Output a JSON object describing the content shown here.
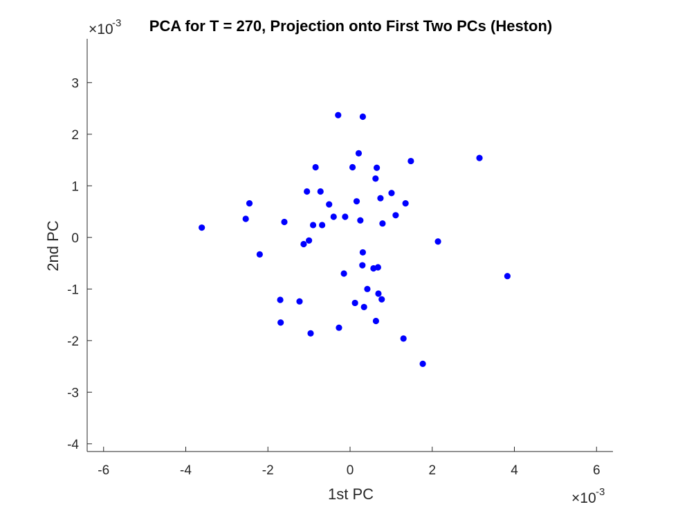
{
  "chart_data": {
    "type": "scatter",
    "title": "PCA for T = 270, Projection onto First Two PCs (Heston)",
    "xlabel": "1st PC",
    "ylabel": "2nd PC",
    "x_multiplier_label": "×10",
    "x_exponent": "-3",
    "y_multiplier_label": "×10",
    "y_exponent": "-3",
    "xlim": [
      -6.4,
      6.4
    ],
    "ylim": [
      -4.15,
      3.85
    ],
    "xticks": [
      -6,
      -4,
      -2,
      0,
      2,
      4,
      6
    ],
    "xtick_labels": [
      "-6",
      "-4",
      "-2",
      "0",
      "2",
      "4",
      "6"
    ],
    "yticks": [
      -4,
      -3,
      -2,
      -1,
      0,
      1,
      2,
      3
    ],
    "ytick_labels": [
      "-4",
      "-3",
      "-2",
      "-1",
      "0",
      "1",
      "2",
      "3"
    ],
    "grid": false,
    "marker_color": "#0000ff",
    "series": [
      {
        "x": [
          -0.29,
          0.31,
          0.21,
          1.48,
          3.15,
          -0.84,
          0.06,
          0.65,
          0.62,
          -1.05,
          -0.72,
          1.01,
          0.74,
          0.16,
          1.35,
          -2.45,
          -0.51,
          1.11,
          -0.4,
          -0.12,
          -2.54,
          0.25,
          -1.6,
          0.79,
          -0.9,
          -0.68,
          -3.61,
          -1.0,
          2.14,
          -1.13,
          0.31,
          -2.2,
          0.3,
          0.68,
          0.57,
          -0.15,
          3.83,
          0.42,
          0.69,
          -1.7,
          0.77,
          -1.23,
          0.12,
          0.34,
          0.63,
          -1.69,
          -0.27,
          -0.96,
          1.3,
          1.77
        ],
        "y": [
          2.37,
          2.34,
          1.63,
          1.48,
          1.54,
          1.36,
          1.36,
          1.35,
          1.14,
          0.89,
          0.89,
          0.86,
          0.76,
          0.7,
          0.66,
          0.66,
          0.64,
          0.43,
          0.4,
          0.4,
          0.36,
          0.33,
          0.3,
          0.27,
          0.24,
          0.24,
          0.19,
          -0.06,
          -0.08,
          -0.13,
          -0.29,
          -0.33,
          -0.54,
          -0.58,
          -0.6,
          -0.7,
          -0.75,
          -1.0,
          -1.09,
          -1.21,
          -1.2,
          -1.24,
          -1.27,
          -1.35,
          -1.62,
          -1.65,
          -1.75,
          -1.86,
          -1.96,
          -2.45
        ]
      }
    ]
  }
}
